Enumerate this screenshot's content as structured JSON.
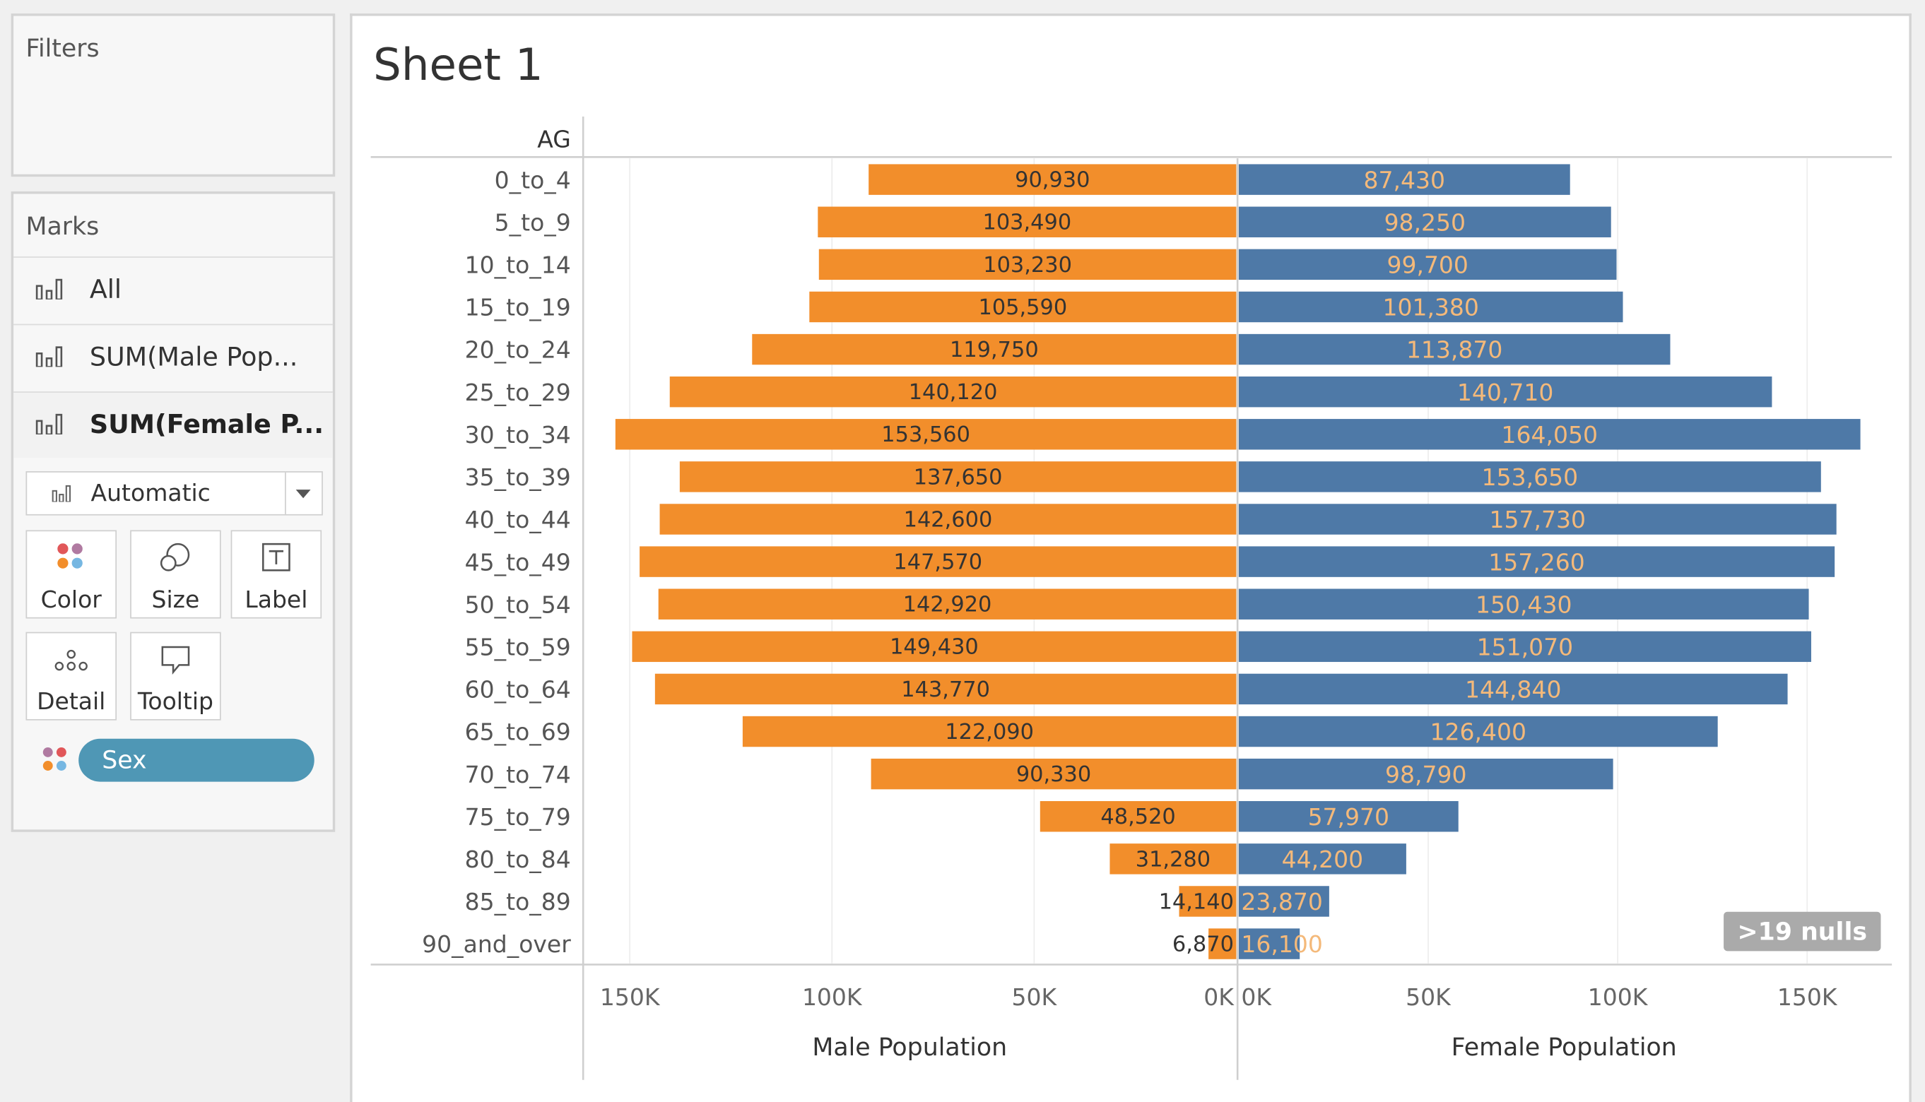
{
  "filters": {
    "title": "Filters"
  },
  "marks": {
    "title": "Marks",
    "rows": [
      {
        "label": "All",
        "icon": "bar-chart-icon"
      },
      {
        "label": "SUM(Male Pop...",
        "icon": "bar-chart-icon"
      },
      {
        "label": "SUM(Female P...",
        "icon": "bar-chart-icon"
      }
    ],
    "mark_type": "Automatic",
    "buttons": {
      "color": "Color",
      "size": "Size",
      "label": "Label",
      "detail": "Detail",
      "tooltip": "Tooltip"
    },
    "color_pill": "Sex"
  },
  "sheet": {
    "title": "Sheet 1",
    "nulls_badge": ">19 nulls"
  },
  "colors": {
    "male": "#f28e2b",
    "female": "#4e79a7",
    "pill": "#4f97b5"
  },
  "chart_data": {
    "type": "bar",
    "orientation": "horizontal",
    "row_header": "AG",
    "categories": [
      "0_to_4",
      "5_to_9",
      "10_to_14",
      "15_to_19",
      "20_to_24",
      "25_to_29",
      "30_to_34",
      "35_to_39",
      "40_to_44",
      "45_to_49",
      "50_to_54",
      "55_to_59",
      "60_to_64",
      "65_to_69",
      "70_to_74",
      "75_to_79",
      "80_to_84",
      "85_to_89",
      "90_and_over"
    ],
    "series": [
      {
        "name": "Male Population",
        "axis_label": "Male Population",
        "reversed": true,
        "values": [
          90930,
          103490,
          103230,
          105590,
          119750,
          140120,
          153560,
          137650,
          142600,
          147570,
          142920,
          149430,
          143770,
          122090,
          90330,
          48520,
          31280,
          14140,
          6870
        ],
        "labels": [
          "90,930",
          "103,490",
          "103,230",
          "105,590",
          "119,750",
          "140,120",
          "153,560",
          "137,650",
          "142,600",
          "147,570",
          "142,920",
          "149,430",
          "143,770",
          "122,090",
          "90,330",
          "48,520",
          "31,280",
          "14,140",
          "6,870"
        ],
        "ticks": [
          "150K",
          "100K",
          "50K",
          "0K"
        ]
      },
      {
        "name": "Female Population",
        "axis_label": "Female Population",
        "reversed": false,
        "values": [
          87430,
          98250,
          99700,
          101380,
          113870,
          140710,
          164050,
          153650,
          157730,
          157260,
          150430,
          151070,
          144840,
          126400,
          98790,
          57970,
          44200,
          23870,
          16100
        ],
        "labels": [
          "87,430",
          "98,250",
          "99,700",
          "101,380",
          "113,870",
          "140,710",
          "164,050",
          "153,650",
          "157,730",
          "157,260",
          "150,430",
          "151,070",
          "144,840",
          "126,400",
          "98,790",
          "57,970",
          "44,200",
          "23,870",
          "16,100"
        ],
        "ticks": [
          "0K",
          "50K",
          "100K",
          "150K"
        ]
      }
    ],
    "grid": true
  }
}
